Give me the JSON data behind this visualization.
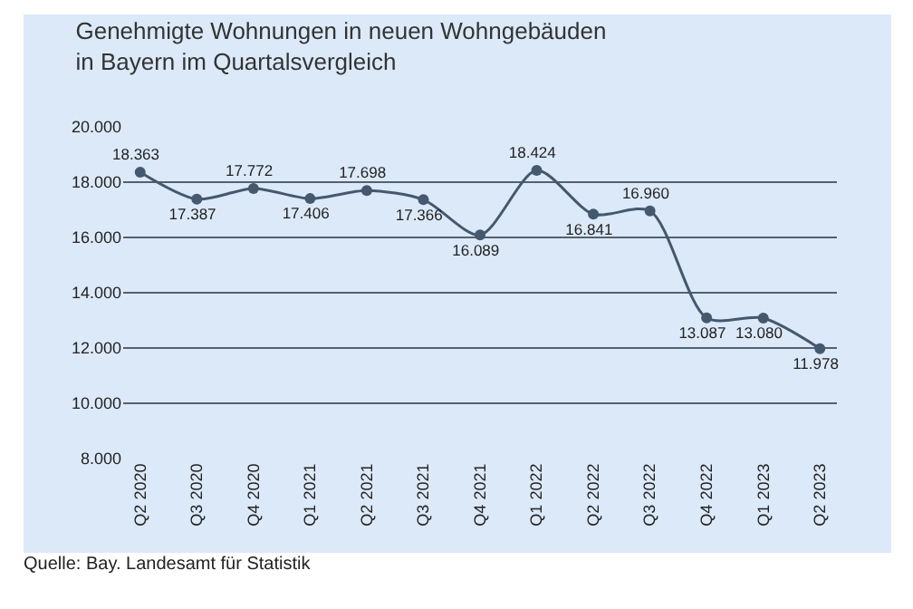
{
  "chart_data": {
    "type": "line",
    "title": "Genehmigte Wohnungen in neuen Wohngebäuden\nin Bayern im Quartalsvergleich",
    "categories": [
      "Q2 2020",
      "Q3 2020",
      "Q4 2020",
      "Q1 2021",
      "Q2 2021",
      "Q3 2021",
      "Q4 2021",
      "Q1 2022",
      "Q2 2022",
      "Q3 2022",
      "Q4 2022",
      "Q1 2023",
      "Q2 2023"
    ],
    "series": [
      {
        "color": "#44586e",
        "values": [
          18363,
          17387,
          17772,
          17406,
          17698,
          17366,
          16089,
          18424,
          16841,
          16960,
          13087,
          13080,
          11978
        ],
        "value_labels": [
          "18.363",
          "17.387",
          "17.772",
          "17.406",
          "17.698",
          "17.366",
          "16.089",
          "18.424",
          "16.841",
          "16.960",
          "13.087",
          "13.080",
          "11.978"
        ]
      }
    ],
    "ylim": [
      8000,
      20000
    ],
    "yticks": [
      {
        "value": 8000,
        "label": "8.000"
      },
      {
        "value": 10000,
        "label": "10.000"
      },
      {
        "value": 12000,
        "label": "12.000"
      },
      {
        "value": 14000,
        "label": "14.000"
      },
      {
        "value": 16000,
        "label": "16.000"
      },
      {
        "value": 18000,
        "label": "18.000"
      },
      {
        "value": 20000,
        "label": "20.000"
      }
    ],
    "grid": "y",
    "marker": "circle",
    "line_style": "solid",
    "annotations": [
      "Quelle: Bay. Landesamt für Statistik"
    ]
  }
}
